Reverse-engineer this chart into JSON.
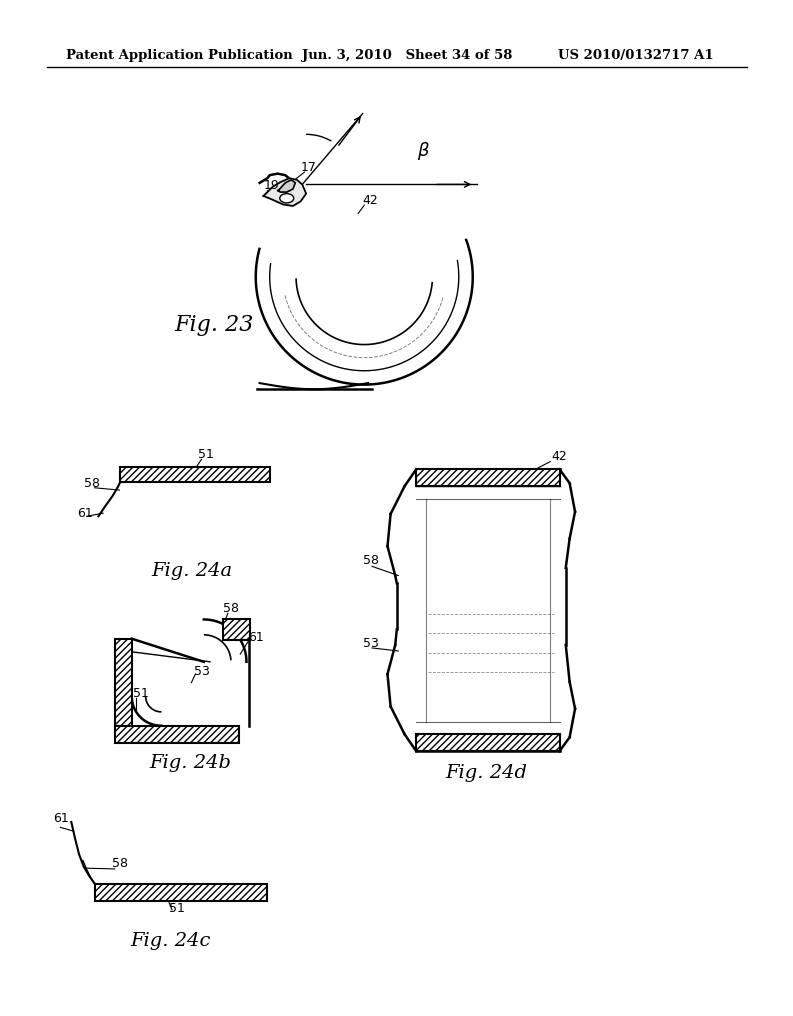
{
  "bg_color": "#ffffff",
  "header_left": "Patent Application Publication",
  "header_mid": "Jun. 3, 2010   Sheet 34 of 58",
  "header_right": "US 2010/0132717 A1",
  "fig23_label": "Fig. 23",
  "fig24a_label": "Fig. 24a",
  "fig24b_label": "Fig. 24b",
  "fig24c_label": "Fig. 24c",
  "fig24d_label": "Fig. 24d",
  "label_color": "#000000",
  "line_color": "#000000"
}
